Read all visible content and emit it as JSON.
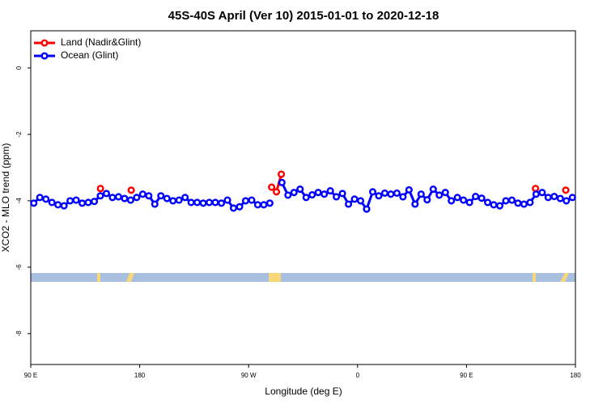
{
  "chart_data": {
    "type": "line",
    "title": "45S-40S April (Ver 10)   2015-01-01 to 2020-12-18",
    "x_label": "Longitude (deg E)",
    "y_label": "XCO2 - MLO trend (ppm)",
    "xlim": [
      90,
      540
    ],
    "xticks": [
      {
        "value": 90,
        "label": "90 E"
      },
      180,
      {
        "value": 270,
        "label": "90 W"
      },
      {
        "value": 360,
        "label": "0"
      },
      {
        "value": 450,
        "label": "90 E"
      },
      {
        "value": 540,
        "label": "180"
      }
    ],
    "ylim": [
      -8.93,
      1.12
    ],
    "yticks": [
      0,
      -2,
      -4,
      -6,
      -8
    ],
    "legend": "top-left",
    "series": [
      {
        "name": "Land (Nadir&Glint)",
        "color": "#ff0000",
        "x": [
          147.6,
          173,
          289,
          293,
          297,
          507,
          532
        ],
        "values": [
          -3.63,
          -3.68,
          -3.59,
          -3.73,
          -3.2,
          -3.63,
          -3.68
        ]
      },
      {
        "name": "Ocean (Glint)",
        "color": "#0000ff",
        "x": [
          92.5,
          97.5,
          102.5,
          107.5,
          112.5,
          117.5,
          122.5,
          127.5,
          132.5,
          137.5,
          142.5,
          147.5,
          152.5,
          157.5,
          162.5,
          167.5,
          172.5,
          177.5,
          182.5,
          187.5,
          192.5,
          197.5,
          202.5,
          207.5,
          212.5,
          217.5,
          222.5,
          227.5,
          232.5,
          237.5,
          242.5,
          247.5,
          252.5,
          257.5,
          262.5,
          267.5,
          272.5,
          277.5,
          282.5,
          287.5,
          292.5,
          297.5,
          302.5,
          307.5,
          312.5,
          317.5,
          322.5,
          327.5,
          332.5,
          337.5,
          342.5,
          347.5,
          352.5,
          357.5,
          362.5,
          367.5,
          372.5,
          377.5,
          382.5,
          387.5,
          392.5,
          397.5,
          402.5,
          407.5,
          412.5,
          417.5,
          422.5,
          427.5,
          432.5,
          437.5,
          442.5,
          447.5,
          452.5,
          457.5,
          462.5,
          467.5,
          472.5,
          477.5,
          482.5,
          487.5,
          492.5,
          497.5,
          502.5,
          507.5,
          512.5,
          517.5,
          522.5,
          527.5,
          532.5,
          537.5
        ],
        "values": [
          -4.07,
          -3.9,
          -3.95,
          -4.05,
          -4.12,
          -4.15,
          -4.0,
          -3.98,
          -4.07,
          -4.05,
          -4.02,
          -3.85,
          -3.78,
          -3.9,
          -3.88,
          -3.93,
          -3.98,
          -3.9,
          -3.8,
          -3.85,
          -4.1,
          -3.85,
          -3.93,
          -4.0,
          -3.98,
          -3.9,
          -4.05,
          -4.05,
          -4.07,
          -4.05,
          -4.05,
          -4.07,
          -3.98,
          -4.22,
          -4.18,
          -4.0,
          -3.98,
          -4.12,
          -4.12,
          -4.07,
          null,
          -3.45,
          -3.83,
          -3.75,
          -3.65,
          -3.9,
          -3.82,
          -3.75,
          -3.8,
          -3.7,
          -3.88,
          -3.78,
          -4.1,
          -3.95,
          -4.0,
          -4.25,
          -3.73,
          -3.85,
          -3.77,
          -3.8,
          -3.77,
          -3.88,
          -3.67,
          -4.1,
          -3.8,
          -3.97,
          -3.65,
          -3.83,
          -3.75,
          -4.0,
          -3.9,
          -3.98,
          -4.05,
          -3.87,
          -3.92,
          -4.05,
          -4.12,
          -4.15,
          -4.0,
          -3.98,
          -4.07,
          -4.1,
          -4.05,
          -3.8,
          -3.75,
          -3.9,
          -3.87,
          -3.93,
          -4.0,
          -3.9
        ]
      }
    ]
  }
}
